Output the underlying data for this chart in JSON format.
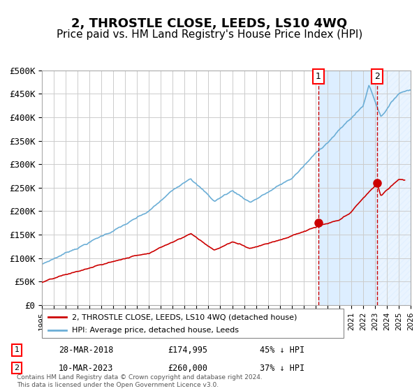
{
  "title": "2, THROSTLE CLOSE, LEEDS, LS10 4WQ",
  "subtitle": "Price paid vs. HM Land Registry's House Price Index (HPI)",
  "title_fontsize": 13,
  "subtitle_fontsize": 11,
  "ylim": [
    0,
    500000
  ],
  "yticks": [
    0,
    50000,
    100000,
    150000,
    200000,
    250000,
    300000,
    350000,
    400000,
    450000,
    500000
  ],
  "ytick_labels": [
    "£0",
    "£50K",
    "£100K",
    "£150K",
    "£200K",
    "£250K",
    "£300K",
    "£350K",
    "£400K",
    "£450K",
    "£500K"
  ],
  "hpi_color": "#6baed6",
  "price_color": "#cc0000",
  "marker_color": "#cc0000",
  "grid_color": "#cccccc",
  "bg_color": "#ffffff",
  "shade_color": "#ddeeff",
  "vline_color": "#cc0000",
  "sale1_date_x": 2018.24,
  "sale1_price": 174995,
  "sale1_label": "1",
  "sale2_date_x": 2023.19,
  "sale2_price": 260000,
  "sale2_label": "2",
  "xmin": 1995,
  "xmax": 2026,
  "legend_label_price": "2, THROSTLE CLOSE, LEEDS, LS10 4WQ (detached house)",
  "legend_label_hpi": "HPI: Average price, detached house, Leeds",
  "footnote1": "Contains HM Land Registry data © Crown copyright and database right 2024.",
  "footnote2": "This data is licensed under the Open Government Licence v3.0.",
  "table_row1_num": "1",
  "table_row1_date": "28-MAR-2018",
  "table_row1_price": "£174,995",
  "table_row1_hpi": "45% ↓ HPI",
  "table_row2_num": "2",
  "table_row2_date": "10-MAR-2023",
  "table_row2_price": "£260,000",
  "table_row2_hpi": "37% ↓ HPI"
}
